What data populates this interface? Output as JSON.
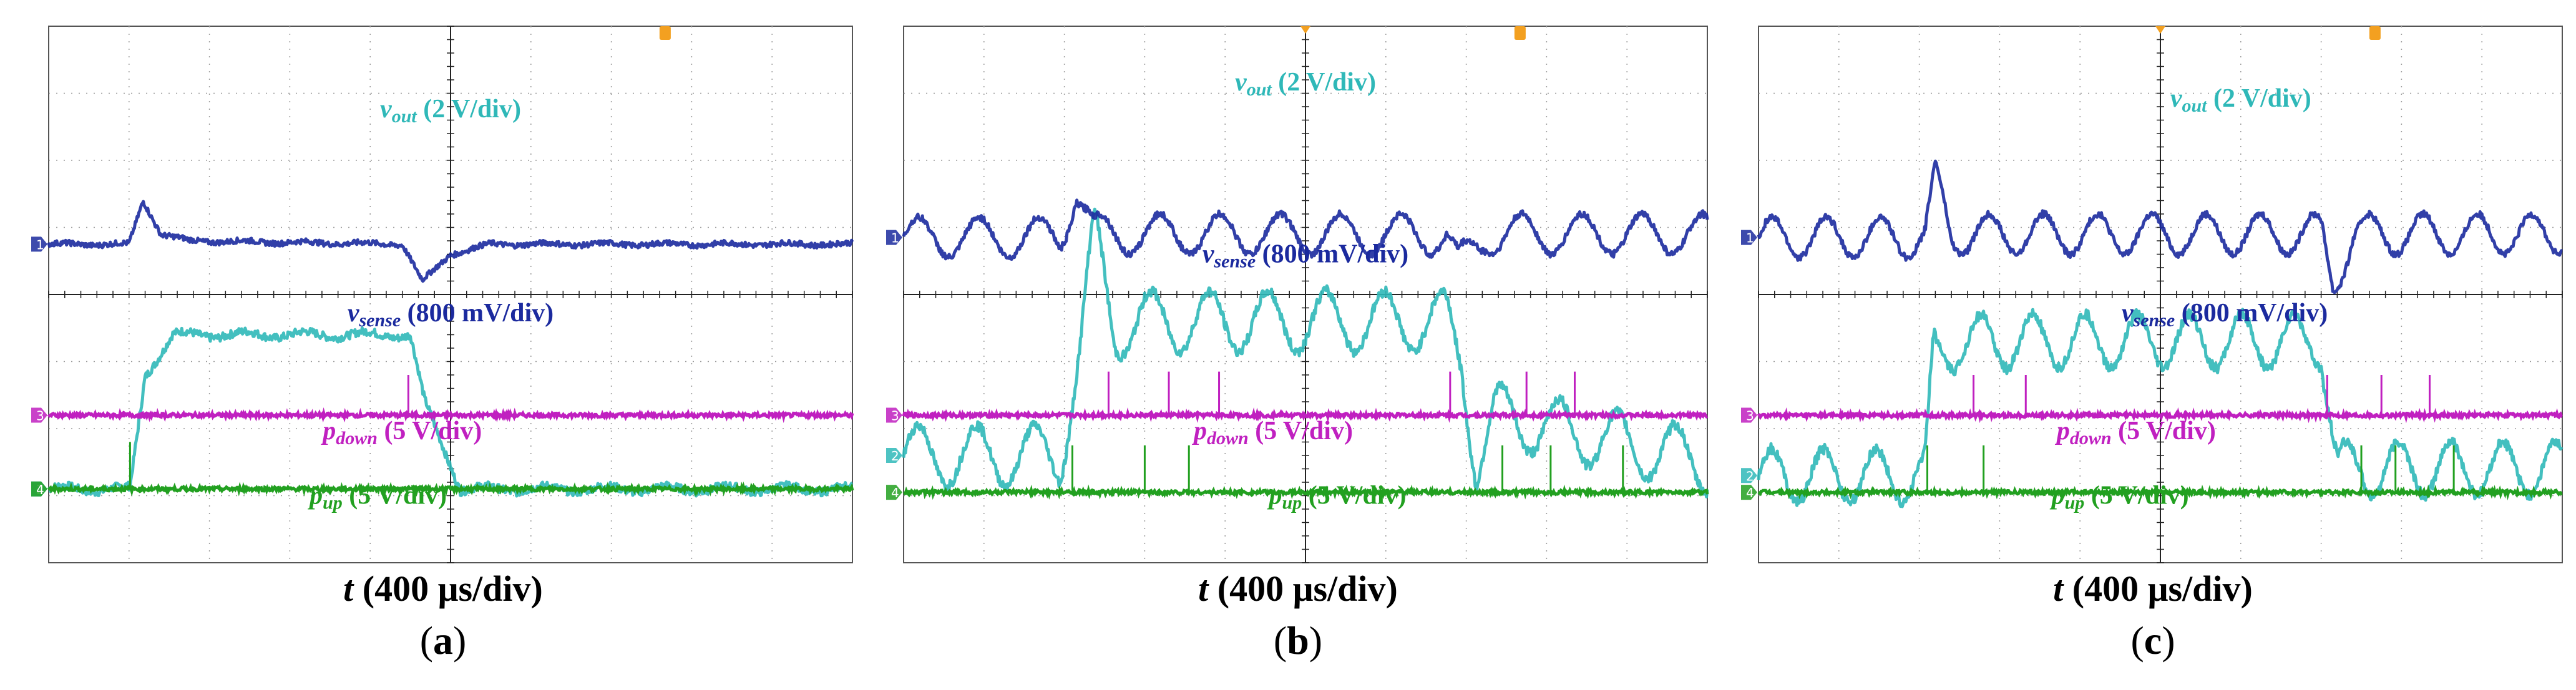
{
  "chart_data": [
    {
      "type": "line",
      "panel_label": "a",
      "title": "",
      "xlabel": "t (400 μs/div)",
      "x_unit_label": "(400 μs/div)",
      "x_symbol": "t",
      "xlim": [
        0,
        4000
      ],
      "x_divisions": 10,
      "y_divisions": 8,
      "grid": true,
      "series": [
        {
          "name": "vout",
          "label": {
            "sym": "v",
            "sub": "out",
            "scale": "(2 V/div)"
          },
          "color": "#2fb8b8",
          "channel": "2",
          "segments": [
            [
              0,
              -2.9
            ],
            [
              405,
              -2.9
            ],
            [
              480,
              -1.2
            ],
            [
              620,
              -0.6
            ],
            [
              1800,
              -0.6
            ],
            [
              1870,
              -1.6
            ],
            [
              2050,
              -2.9
            ],
            [
              4000,
              -2.9
            ]
          ],
          "ripple_amp": 0.05,
          "ripple_period": 300,
          "noise": 0.06
        },
        {
          "name": "vsense",
          "label": {
            "sym": "v",
            "sub": "sense",
            "scale": "(800 mV/div)"
          },
          "color": "#1b2a9e",
          "channel": "1",
          "segments": [
            [
              0,
              0.75
            ],
            [
              400,
              0.75
            ],
            [
              470,
              1.4
            ],
            [
              560,
              0.9
            ],
            [
              700,
              0.8
            ],
            [
              1760,
              0.75
            ],
            [
              1860,
              0.2
            ],
            [
              2000,
              0.6
            ],
            [
              2200,
              0.75
            ],
            [
              4000,
              0.75
            ]
          ],
          "ripple_amp": 0.02,
          "ripple_period": 300,
          "noise": 0.04
        },
        {
          "name": "pdown",
          "label": {
            "sym": "p",
            "sub": "down",
            "scale": "(5 V/div)"
          },
          "color": "#c020c0",
          "channel": "3",
          "baseline": -1.8,
          "pulse_height": 0.6,
          "pulses": [
            1790
          ]
        },
        {
          "name": "pup",
          "label": {
            "sym": "p",
            "sub": "up",
            "scale": "(5 V/div)"
          },
          "color": "#22a020",
          "channel": "4",
          "baseline": -2.9,
          "pulse_height": 0.7,
          "pulses": [
            405
          ]
        }
      ]
    },
    {
      "type": "line",
      "panel_label": "b",
      "title": "",
      "xlabel": "t (400 μs/div)",
      "x_unit_label": "(400 μs/div)",
      "x_symbol": "t",
      "xlim": [
        0,
        4000
      ],
      "x_divisions": 10,
      "y_divisions": 8,
      "grid": true,
      "series": [
        {
          "name": "vout",
          "label": {
            "sym": "v",
            "sub": "out",
            "scale": "(2 V/div)"
          },
          "color": "#2fb8b8",
          "channel": "2",
          "segments": [
            [
              0,
              -2.4
            ],
            [
              780,
              -2.4
            ],
            [
              880,
              -0.8
            ],
            [
              950,
              0.9
            ],
            [
              1050,
              -0.5
            ],
            [
              1200,
              -0.4
            ],
            [
              2700,
              -0.4
            ],
            [
              2780,
              -1.0
            ],
            [
              2850,
              -2.5
            ],
            [
              2950,
              -1.8
            ],
            [
              4000,
              -2.5
            ]
          ],
          "ripple_amp": 0.45,
          "ripple_period": 290,
          "noise": 0.08
        },
        {
          "name": "vsense",
          "label": {
            "sym": "v",
            "sub": "sense",
            "scale": "(800 mV/div)"
          },
          "color": "#1b2a9e",
          "channel": "1",
          "segments": [
            [
              0,
              0.85
            ],
            [
              780,
              0.85
            ],
            [
              860,
              1.6
            ],
            [
              950,
              0.9
            ],
            [
              1050,
              0.9
            ],
            [
              2700,
              0.9
            ],
            [
              2760,
              0.4
            ],
            [
              2900,
              0.9
            ],
            [
              4000,
              0.9
            ]
          ],
          "ripple_amp": 0.3,
          "ripple_period": 300,
          "noise": 0.05
        },
        {
          "name": "pdown",
          "label": {
            "sym": "p",
            "sub": "down",
            "scale": "(5 V/div)"
          },
          "color": "#c020c0",
          "channel": "3",
          "baseline": -1.8,
          "pulse_height": 0.65,
          "pulses": [
            1020,
            1320,
            1570,
            2720,
            3100,
            3340
          ]
        },
        {
          "name": "pup",
          "label": {
            "sym": "p",
            "sub": "up",
            "scale": "(5 V/div)"
          },
          "color": "#22a020",
          "channel": "4",
          "baseline": -2.95,
          "pulse_height": 0.7,
          "pulses": [
            840,
            1200,
            1420,
            2980,
            3220,
            3580
          ]
        }
      ]
    },
    {
      "type": "line",
      "panel_label": "c",
      "title": "",
      "xlabel": "t (400 μs/div)",
      "x_unit_label": "(400 μs/div)",
      "x_symbol": "t",
      "xlim": [
        0,
        4000
      ],
      "x_divisions": 10,
      "y_divisions": 8,
      "grid": true,
      "series": [
        {
          "name": "vout",
          "label": {
            "sym": "v",
            "sub": "out",
            "scale": "(2 V/div)"
          },
          "color": "#2fb8b8",
          "channel": "2",
          "segments": [
            [
              0,
              -2.7
            ],
            [
              830,
              -2.7
            ],
            [
              870,
              -0.9
            ],
            [
              1000,
              -0.7
            ],
            [
              2800,
              -0.7
            ],
            [
              2880,
              -2.6
            ],
            [
              4000,
              -2.6
            ]
          ],
          "ripple_amp": 0.4,
          "ripple_period": 260,
          "noise": 0.08
        },
        {
          "name": "vsense",
          "label": {
            "sym": "v",
            "sub": "sense",
            "scale": "(800 mV/div)"
          },
          "color": "#1b2a9e",
          "channel": "1",
          "segments": [
            [
              0,
              0.85
            ],
            [
              830,
              0.85
            ],
            [
              880,
              1.7
            ],
            [
              960,
              0.9
            ],
            [
              2800,
              0.9
            ],
            [
              2860,
              0.2
            ],
            [
              2960,
              0.9
            ],
            [
              4000,
              0.9
            ]
          ],
          "ripple_amp": 0.3,
          "ripple_period": 270,
          "noise": 0.05
        },
        {
          "name": "pdown",
          "label": {
            "sym": "p",
            "sub": "down",
            "scale": "(5 V/div)"
          },
          "color": "#c020c0",
          "channel": "3",
          "baseline": -1.8,
          "pulse_height": 0.6,
          "pulses": [
            1070,
            1330,
            2830,
            3100,
            3340
          ]
        },
        {
          "name": "pup",
          "label": {
            "sym": "p",
            "sub": "up",
            "scale": "(5 V/div)"
          },
          "color": "#22a020",
          "channel": "4",
          "baseline": -2.95,
          "pulse_height": 0.7,
          "pulses": [
            840,
            1120,
            3000,
            3170,
            3460
          ]
        }
      ]
    }
  ]
}
